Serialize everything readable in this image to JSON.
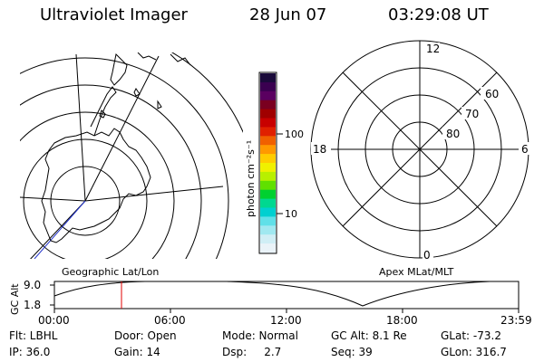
{
  "header": {
    "instrument": "Ultraviolet Imager",
    "date": "28 Jun 07",
    "time": "03:29:08 UT"
  },
  "colorbar": {
    "unit_label": "photon cm⁻²s⁻¹",
    "tick_labels": [
      "100",
      "10"
    ],
    "colors": [
      "#1a0a3a",
      "#3a0050",
      "#5a0060",
      "#7a0020",
      "#a00000",
      "#c80000",
      "#e02000",
      "#f06000",
      "#ff9900",
      "#ffcc00",
      "#f0f000",
      "#b8f000",
      "#60e000",
      "#00d030",
      "#00d890",
      "#00d0d0",
      "#60e0e8",
      "#a0e8f0",
      "#d0eef5",
      "#eaf3f8"
    ]
  },
  "left_map": {
    "caption": "Geographic Lat/Lon"
  },
  "right_map": {
    "caption": "Apex MLat/MLT",
    "mlt_labels": {
      "top": "12",
      "left": "18",
      "right": "6",
      "bottom": "0"
    },
    "lat_labels": [
      "60",
      "70",
      "80"
    ]
  },
  "timeline": {
    "ylabel": "GC Alt",
    "y_ticks": [
      "9.0",
      "1.8"
    ],
    "x_ticks": [
      "00:00",
      "06:00",
      "12:00",
      "18:00",
      "23:59"
    ],
    "current_marker_time": "03:29"
  },
  "status": {
    "flt": "Flt: LBHL",
    "door": "Door: Open",
    "mode": "Mode: Normal",
    "gc_alt": "GC Alt: 8.1 Re",
    "glat": "GLat: -73.2",
    "ip": "IP: 36.0",
    "gain": "Gain: 14",
    "dsp": "Dsp:     2.7",
    "seq": "Seq: 39",
    "glon": "GLon: 316.7"
  }
}
